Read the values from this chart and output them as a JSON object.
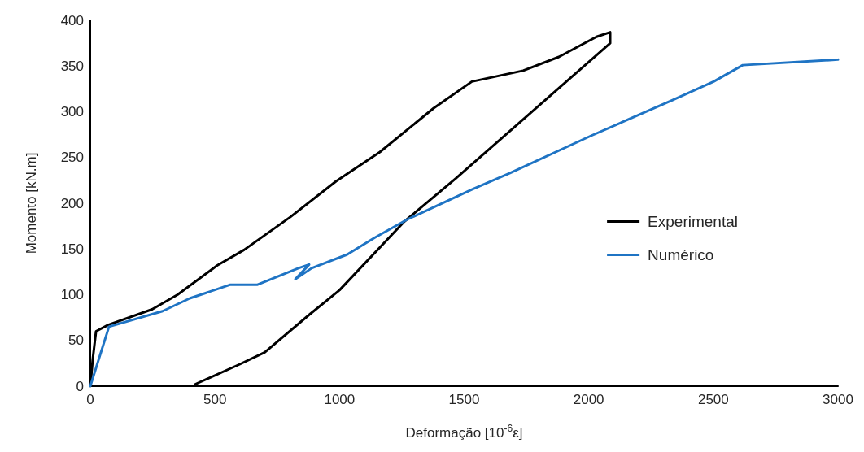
{
  "chart_data": {
    "type": "line",
    "xlabel": "Deformação [10$^{-6}$ε]",
    "ylabel": "Momento [kN.m]",
    "xlim": [
      0,
      3000
    ],
    "xticks": [
      0,
      500,
      1000,
      1500,
      2000,
      2500,
      3000
    ],
    "ylim": [
      0,
      400
    ],
    "yticks": [
      0,
      50,
      100,
      150,
      200,
      250,
      300,
      350,
      400
    ],
    "grid": false,
    "legend": "right",
    "marker": "none",
    "line_style": "solid",
    "series": [
      {
        "name": "Experimental",
        "color": "#000000",
        "x": [
          0,
          10,
          23,
          72,
          248,
          350,
          509,
          617,
          803,
          986,
          1162,
          1378,
          1531,
          1737,
          1880,
          2031,
          2086,
          2086,
          1466,
          1260,
          1000,
          878,
          700,
          600,
          420
        ],
        "values": [
          0,
          30,
          60,
          67,
          84,
          100,
          132,
          149,
          185,
          224,
          256,
          304,
          333,
          345,
          360,
          382,
          387,
          375,
          227,
          180,
          105,
          78,
          37,
          24,
          2
        ]
      },
      {
        "name": "Numérico",
        "color": "#1f74c4",
        "x": [
          0,
          75,
          290,
          399,
          562,
          671,
          835,
          878,
          823,
          888,
          1031,
          1139,
          1270,
          1531,
          1684,
          2011,
          2338,
          2501,
          2618,
          3000
        ],
        "values": [
          0,
          65,
          82,
          96,
          111,
          111,
          129,
          133,
          117,
          129,
          144,
          162,
          182,
          215,
          233,
          274,
          313,
          333,
          351,
          357
        ]
      }
    ]
  }
}
